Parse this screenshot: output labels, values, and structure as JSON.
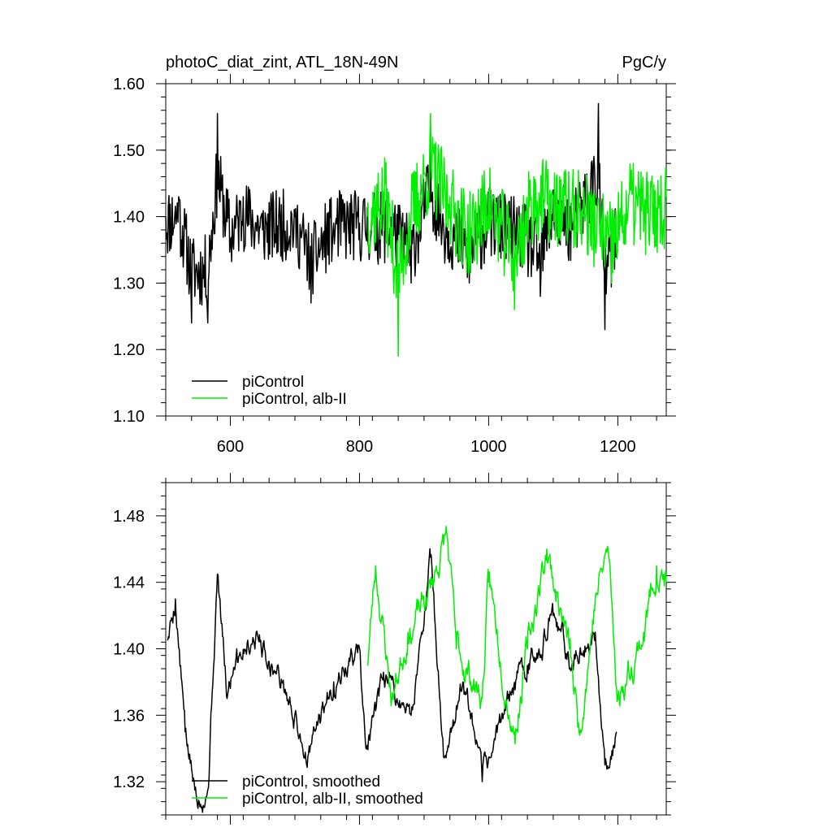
{
  "header": {
    "title_left": "photoC_diat_zint, ATL_18N-49N",
    "title_right": "PgC/y"
  },
  "colors": {
    "piControl": "#000000",
    "albII": "#00ee00"
  },
  "chart_data": [
    {
      "type": "line",
      "panel": "top",
      "xlim": [
        500,
        1275
      ],
      "ylim": [
        1.1,
        1.6
      ],
      "xticks": [
        600,
        800,
        1000,
        1200
      ],
      "yticks": [
        1.1,
        1.2,
        1.3,
        1.4,
        1.5,
        1.6
      ],
      "ytick_labels": [
        "1.10",
        "1.20",
        "1.30",
        "1.40",
        "1.50",
        "1.60"
      ],
      "series": [
        {
          "name": "piControl",
          "x_start": 500,
          "x_end": 1200,
          "keypoints": [
            [
              500,
              1.4
            ],
            [
              520,
              1.43
            ],
            [
              540,
              1.24
            ],
            [
              565,
              1.24
            ],
            [
              580,
              1.555
            ],
            [
              600,
              1.36
            ],
            [
              620,
              1.43
            ],
            [
              650,
              1.38
            ],
            [
              700,
              1.4
            ],
            [
              725,
              1.27
            ],
            [
              760,
              1.39
            ],
            [
              800,
              1.39
            ],
            [
              850,
              1.38
            ],
            [
              880,
              1.3
            ],
            [
              910,
              1.52
            ],
            [
              930,
              1.39
            ],
            [
              970,
              1.3
            ],
            [
              1000,
              1.4
            ],
            [
              1050,
              1.36
            ],
            [
              1080,
              1.28
            ],
            [
              1100,
              1.44
            ],
            [
              1130,
              1.38
            ],
            [
              1170,
              1.57
            ],
            [
              1180,
              1.23
            ],
            [
              1200,
              1.35
            ]
          ],
          "amp": 0.055,
          "mean": 1.382,
          "seed": 11
        },
        {
          "name": "piControl, alb-II",
          "x_start": 812,
          "x_end": 1275,
          "keypoints": [
            [
              812,
              1.4
            ],
            [
              840,
              1.45
            ],
            [
              860,
              1.19
            ],
            [
              880,
              1.4
            ],
            [
              910,
              1.555
            ],
            [
              940,
              1.43
            ],
            [
              970,
              1.33
            ],
            [
              1000,
              1.44
            ],
            [
              1040,
              1.26
            ],
            [
              1070,
              1.46
            ],
            [
              1100,
              1.43
            ],
            [
              1150,
              1.4
            ],
            [
              1190,
              1.3
            ],
            [
              1220,
              1.44
            ],
            [
              1250,
              1.4
            ],
            [
              1275,
              1.43
            ]
          ],
          "amp": 0.065,
          "mean": 1.405,
          "seed": 37
        }
      ],
      "legend": [
        "piControl",
        "piControl, alb-II"
      ]
    },
    {
      "type": "line",
      "panel": "bottom",
      "xlim": [
        500,
        1275
      ],
      "ylim": [
        1.3,
        1.5
      ],
      "xticks": [
        600,
        800,
        1000,
        1200
      ],
      "yticks": [
        1.32,
        1.36,
        1.4,
        1.44,
        1.48
      ],
      "ytick_labels": [
        "1.32",
        "1.36",
        "1.40",
        "1.44",
        "1.48"
      ],
      "series": [
        {
          "name": "piControl, smoothed",
          "x_start": 503,
          "x_end": 1198,
          "keypoints": [
            [
              503,
              1.405
            ],
            [
              515,
              1.43
            ],
            [
              530,
              1.35
            ],
            [
              545,
              1.315
            ],
            [
              565,
              1.315
            ],
            [
              580,
              1.445
            ],
            [
              595,
              1.37
            ],
            [
              610,
              1.4
            ],
            [
              640,
              1.41
            ],
            [
              680,
              1.38
            ],
            [
              720,
              1.335
            ],
            [
              760,
              1.38
            ],
            [
              800,
              1.4
            ],
            [
              810,
              1.34
            ],
            [
              840,
              1.38
            ],
            [
              880,
              1.36
            ],
            [
              910,
              1.455
            ],
            [
              930,
              1.335
            ],
            [
              960,
              1.38
            ],
            [
              990,
              1.32
            ],
            [
              1030,
              1.37
            ],
            [
              1060,
              1.39
            ],
            [
              1100,
              1.42
            ],
            [
              1130,
              1.39
            ],
            [
              1165,
              1.41
            ],
            [
              1180,
              1.33
            ],
            [
              1198,
              1.35
            ]
          ],
          "amp": 0.013,
          "mean": 1.38,
          "seed": 5
        },
        {
          "name": "piControl, alb-II, smoothed",
          "x_start": 812,
          "x_end": 1275,
          "keypoints": [
            [
              812,
              1.39
            ],
            [
              825,
              1.45
            ],
            [
              850,
              1.37
            ],
            [
              875,
              1.41
            ],
            [
              905,
              1.43
            ],
            [
              935,
              1.47
            ],
            [
              950,
              1.4
            ],
            [
              990,
              1.37
            ],
            [
              1000,
              1.44
            ],
            [
              1040,
              1.35
            ],
            [
              1060,
              1.4
            ],
            [
              1090,
              1.46
            ],
            [
              1125,
              1.4
            ],
            [
              1140,
              1.35
            ],
            [
              1165,
              1.43
            ],
            [
              1185,
              1.46
            ],
            [
              1200,
              1.37
            ],
            [
              1240,
              1.41
            ],
            [
              1260,
              1.45
            ],
            [
              1275,
              1.44
            ]
          ],
          "amp": 0.016,
          "mean": 1.4,
          "seed": 23
        }
      ],
      "legend": [
        "piControl, smoothed",
        "piControl, alb-II, smoothed"
      ]
    }
  ]
}
